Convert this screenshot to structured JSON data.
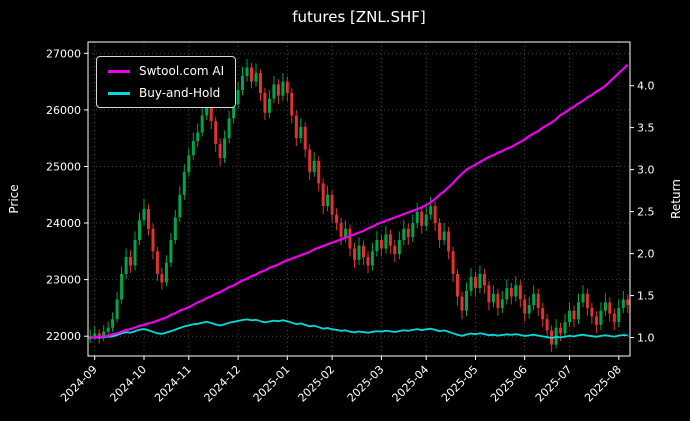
{
  "chart_data": {
    "type": "candlestick+line",
    "title": "futures [ZNL.SHF]",
    "xlabel": "",
    "ylabel_left": "Price",
    "ylabel_right": "Return",
    "grid": true,
    "legend_position": "upper-left",
    "price_ticks": [
      22000,
      23000,
      24000,
      25000,
      26000,
      27000
    ],
    "return_ticks": [
      1.0,
      1.5,
      2.0,
      2.5,
      3.0,
      3.5,
      4.0
    ],
    "ylim_price": [
      21650,
      27200
    ],
    "ylim_return": [
      0.78,
      4.52
    ],
    "x_ticks": [
      {
        "label": "2024-09",
        "index": 1
      },
      {
        "label": "2024-10",
        "index": 12
      },
      {
        "label": "2024-11",
        "index": 22
      },
      {
        "label": "2024-12",
        "index": 33
      },
      {
        "label": "2025-01",
        "index": 44
      },
      {
        "label": "2025-02",
        "index": 54
      },
      {
        "label": "2025-03",
        "index": 65
      },
      {
        "label": "2025-04",
        "index": 75
      },
      {
        "label": "2025-05",
        "index": 86
      },
      {
        "label": "2025-06",
        "index": 97
      },
      {
        "label": "2025-07",
        "index": 107
      },
      {
        "label": "2025-08",
        "index": 118
      }
    ],
    "ohlc": [
      [
        21950,
        22120,
        21880,
        22000
      ],
      [
        22000,
        22180,
        21930,
        22050
      ],
      [
        22050,
        22120,
        21870,
        21980
      ],
      [
        21980,
        22200,
        21910,
        22080
      ],
      [
        22080,
        22260,
        22000,
        22150
      ],
      [
        22150,
        22420,
        22080,
        22300
      ],
      [
        22300,
        22780,
        22240,
        22650
      ],
      [
        22650,
        23230,
        22580,
        23100
      ],
      [
        23100,
        23550,
        23010,
        23400
      ],
      [
        23400,
        23520,
        23120,
        23250
      ],
      [
        23250,
        23850,
        23160,
        23700
      ],
      [
        23700,
        24180,
        23610,
        24050
      ],
      [
        24050,
        24420,
        23960,
        24250
      ],
      [
        24250,
        24330,
        23780,
        23900
      ],
      [
        23900,
        23990,
        23360,
        23500
      ],
      [
        23500,
        23580,
        22980,
        23100
      ],
      [
        23100,
        23210,
        22820,
        22950
      ],
      [
        22950,
        23430,
        22880,
        23300
      ],
      [
        23300,
        23820,
        23220,
        23700
      ],
      [
        23700,
        24230,
        23630,
        24100
      ],
      [
        24100,
        24650,
        24020,
        24500
      ],
      [
        24500,
        25040,
        24410,
        24900
      ],
      [
        24900,
        25330,
        24820,
        25200
      ],
      [
        25200,
        25600,
        25120,
        25450
      ],
      [
        25450,
        25760,
        25340,
        25600
      ],
      [
        25600,
        26060,
        25530,
        25900
      ],
      [
        25900,
        26380,
        25820,
        26150
      ],
      [
        26150,
        26240,
        25660,
        25800
      ],
      [
        25800,
        25880,
        25260,
        25400
      ],
      [
        25400,
        25500,
        25010,
        25150
      ],
      [
        25150,
        25640,
        25060,
        25500
      ],
      [
        25500,
        25980,
        25410,
        25850
      ],
      [
        25850,
        26240,
        25760,
        26100
      ],
      [
        26100,
        26500,
        26020,
        26350
      ],
      [
        26350,
        26760,
        26260,
        26600
      ],
      [
        26600,
        26900,
        26500,
        26750
      ],
      [
        26750,
        26830,
        26380,
        26500
      ],
      [
        26500,
        26820,
        26410,
        26650
      ],
      [
        26650,
        26720,
        26160,
        26300
      ],
      [
        26300,
        26390,
        25820,
        25950
      ],
      [
        25950,
        26350,
        25860,
        26200
      ],
      [
        26200,
        26600,
        26120,
        26450
      ],
      [
        26450,
        26540,
        26110,
        26250
      ],
      [
        26250,
        26650,
        26160,
        26500
      ],
      [
        26500,
        26590,
        26150,
        26300
      ],
      [
        26300,
        26380,
        25760,
        25900
      ],
      [
        25900,
        25990,
        25360,
        25500
      ],
      [
        25500,
        25850,
        25410,
        25700
      ],
      [
        25700,
        25780,
        25160,
        25300
      ],
      [
        25300,
        25390,
        24760,
        24900
      ],
      [
        24900,
        25260,
        24820,
        25100
      ],
      [
        25100,
        25180,
        24560,
        24700
      ],
      [
        24700,
        24790,
        24160,
        24300
      ],
      [
        24300,
        24660,
        24210,
        24500
      ],
      [
        24500,
        24580,
        24010,
        24150
      ],
      [
        24150,
        24260,
        23870,
        24000
      ],
      [
        24000,
        24090,
        23610,
        23750
      ],
      [
        23750,
        24050,
        23660,
        23900
      ],
      [
        23900,
        23980,
        23410,
        23550
      ],
      [
        23550,
        23650,
        23210,
        23350
      ],
      [
        23350,
        23750,
        23260,
        23600
      ],
      [
        23600,
        23690,
        23260,
        23400
      ],
      [
        23400,
        23500,
        23110,
        23250
      ],
      [
        23250,
        23650,
        23160,
        23500
      ],
      [
        23500,
        23860,
        23410,
        23700
      ],
      [
        23700,
        23790,
        23410,
        23550
      ],
      [
        23550,
        23950,
        23460,
        23800
      ],
      [
        23800,
        23890,
        23460,
        23600
      ],
      [
        23600,
        23700,
        23310,
        23450
      ],
      [
        23450,
        23850,
        23360,
        23700
      ],
      [
        23700,
        24060,
        23610,
        23900
      ],
      [
        23900,
        23990,
        23610,
        23750
      ],
      [
        23750,
        24150,
        23660,
        24000
      ],
      [
        24000,
        24360,
        23910,
        24200
      ],
      [
        24200,
        24290,
        23810,
        23950
      ],
      [
        23950,
        24310,
        23860,
        24150
      ],
      [
        24150,
        24460,
        24060,
        24300
      ],
      [
        24300,
        24380,
        23860,
        24000
      ],
      [
        24000,
        24090,
        23560,
        23700
      ],
      [
        23700,
        24000,
        23610,
        23850
      ],
      [
        23850,
        23930,
        23360,
        23500
      ],
      [
        23500,
        23580,
        22960,
        23100
      ],
      [
        23100,
        23180,
        22540,
        22700
      ],
      [
        22700,
        22790,
        22300,
        22450
      ],
      [
        22450,
        22950,
        22360,
        22800
      ],
      [
        22800,
        23200,
        22710,
        23050
      ],
      [
        23050,
        23140,
        22700,
        22850
      ],
      [
        22850,
        23250,
        22760,
        23100
      ],
      [
        23100,
        23190,
        22750,
        22900
      ],
      [
        22900,
        22980,
        22460,
        22600
      ],
      [
        22600,
        22900,
        22510,
        22750
      ],
      [
        22750,
        22840,
        22360,
        22500
      ],
      [
        22500,
        22800,
        22410,
        22650
      ],
      [
        22650,
        23000,
        22560,
        22850
      ],
      [
        22850,
        22940,
        22560,
        22700
      ],
      [
        22700,
        23060,
        22610,
        22900
      ],
      [
        22900,
        22990,
        22510,
        22650
      ],
      [
        22650,
        22740,
        22260,
        22400
      ],
      [
        22400,
        22700,
        22310,
        22550
      ],
      [
        22550,
        22900,
        22460,
        22750
      ],
      [
        22750,
        22840,
        22360,
        22500
      ],
      [
        22500,
        22590,
        22160,
        22300
      ],
      [
        22300,
        22390,
        21960,
        22100
      ],
      [
        22100,
        22190,
        21720,
        21850
      ],
      [
        21850,
        22300,
        21780,
        22150
      ],
      [
        22150,
        22240,
        21910,
        22050
      ],
      [
        22050,
        22400,
        21960,
        22250
      ],
      [
        22250,
        22600,
        22160,
        22450
      ],
      [
        22450,
        22540,
        22160,
        22300
      ],
      [
        22300,
        22750,
        22210,
        22600
      ],
      [
        22600,
        22900,
        22510,
        22750
      ],
      [
        22750,
        22840,
        22360,
        22500
      ],
      [
        22500,
        22590,
        22210,
        22350
      ],
      [
        22350,
        22440,
        22060,
        22200
      ],
      [
        22200,
        22600,
        22110,
        22450
      ],
      [
        22450,
        22760,
        22360,
        22600
      ],
      [
        22600,
        22690,
        22260,
        22400
      ],
      [
        22400,
        22490,
        22110,
        22250
      ],
      [
        22250,
        22650,
        22160,
        22500
      ],
      [
        22500,
        22800,
        22410,
        22650
      ],
      [
        22650,
        22740,
        22410,
        22550
      ]
    ],
    "series": [
      {
        "name": "Swtool.com AI",
        "color": "#ee00ee",
        "axis": "return",
        "values": [
          1.0,
          1.0,
          1.01,
          1.01,
          1.02,
          1.04,
          1.05,
          1.07,
          1.09,
          1.1,
          1.12,
          1.14,
          1.15,
          1.17,
          1.18,
          1.2,
          1.22,
          1.24,
          1.27,
          1.29,
          1.32,
          1.34,
          1.36,
          1.39,
          1.42,
          1.44,
          1.47,
          1.49,
          1.52,
          1.54,
          1.57,
          1.6,
          1.62,
          1.65,
          1.68,
          1.7,
          1.73,
          1.75,
          1.78,
          1.8,
          1.83,
          1.85,
          1.87,
          1.9,
          1.92,
          1.94,
          1.96,
          1.98,
          2.0,
          2.02,
          2.05,
          2.07,
          2.09,
          2.11,
          2.13,
          2.15,
          2.17,
          2.19,
          2.21,
          2.23,
          2.25,
          2.27,
          2.3,
          2.32,
          2.35,
          2.37,
          2.39,
          2.41,
          2.43,
          2.45,
          2.47,
          2.49,
          2.51,
          2.53,
          2.55,
          2.58,
          2.61,
          2.65,
          2.7,
          2.74,
          2.79,
          2.84,
          2.9,
          2.95,
          3.0,
          3.03,
          3.06,
          3.09,
          3.12,
          3.15,
          3.17,
          3.2,
          3.22,
          3.25,
          3.27,
          3.3,
          3.33,
          3.36,
          3.4,
          3.43,
          3.46,
          3.5,
          3.53,
          3.56,
          3.6,
          3.65,
          3.68,
          3.72,
          3.75,
          3.79,
          3.82,
          3.86,
          3.89,
          3.93,
          3.96,
          4.0,
          4.05,
          4.1,
          4.15,
          4.2,
          4.25
        ]
      },
      {
        "name": "Buy-and-Hold",
        "color": "#00dcdc",
        "axis": "return",
        "values": [
          1.0,
          1.002,
          0.999,
          1.004,
          1.007,
          1.014,
          1.03,
          1.05,
          1.064,
          1.057,
          1.077,
          1.093,
          1.102,
          1.086,
          1.068,
          1.05,
          1.043,
          1.059,
          1.077,
          1.095,
          1.114,
          1.132,
          1.145,
          1.157,
          1.164,
          1.177,
          1.189,
          1.173,
          1.155,
          1.143,
          1.159,
          1.175,
          1.186,
          1.198,
          1.209,
          1.216,
          1.205,
          1.211,
          1.195,
          1.18,
          1.191,
          1.202,
          1.193,
          1.205,
          1.195,
          1.177,
          1.159,
          1.168,
          1.15,
          1.132,
          1.141,
          1.123,
          1.105,
          1.114,
          1.098,
          1.091,
          1.08,
          1.086,
          1.07,
          1.061,
          1.073,
          1.064,
          1.057,
          1.068,
          1.077,
          1.07,
          1.082,
          1.073,
          1.066,
          1.077,
          1.086,
          1.08,
          1.091,
          1.1,
          1.089,
          1.098,
          1.105,
          1.091,
          1.077,
          1.084,
          1.068,
          1.05,
          1.032,
          1.02,
          1.036,
          1.048,
          1.039,
          1.05,
          1.041,
          1.027,
          1.034,
          1.023,
          1.03,
          1.039,
          1.032,
          1.041,
          1.03,
          1.018,
          1.025,
          1.034,
          1.023,
          1.014,
          1.005,
          0.993,
          1.007,
          1.002,
          1.011,
          1.02,
          1.014,
          1.027,
          1.034,
          1.023,
          1.016,
          1.009,
          1.02,
          1.027,
          1.018,
          1.011,
          1.023,
          1.03,
          1.025
        ]
      }
    ],
    "colors": {
      "up": "#00a44a",
      "down": "#dd3333",
      "grid": "#555555",
      "background": "#000000",
      "foreground": "#ffffff"
    }
  }
}
